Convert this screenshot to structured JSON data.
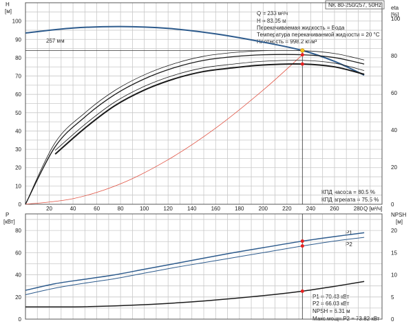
{
  "chart_data": [
    {
      "type": "line",
      "title": "NK 80-250/257, 50Hz",
      "xlabel": "Q [м³/ч]",
      "x_ticks": [
        0,
        20,
        40,
        60,
        80,
        100,
        120,
        140,
        160,
        180,
        200,
        220,
        240,
        260,
        280
      ],
      "xlim": [
        0,
        300
      ],
      "grid": true,
      "left_axis": {
        "label_top": "H",
        "label_unit": "[м]",
        "ylim": [
          0,
          110
        ],
        "ticks": [
          0,
          10,
          20,
          30,
          40,
          50,
          60,
          70,
          80,
          90,
          100
        ]
      },
      "right_axis": {
        "label_top": "eta",
        "label_unit": "[%]",
        "ylim": [
          0,
          100
        ],
        "ticks": [
          0,
          20,
          40,
          60,
          80,
          100
        ]
      },
      "series": [
        {
          "name": "257 мм",
          "axis": "left",
          "color": "#2c5a8c",
          "x": [
            0,
            40,
            80,
            120,
            160,
            200,
            233,
            260,
            285
          ],
          "y": [
            93.5,
            96.2,
            97,
            96,
            93,
            88.5,
            83.95,
            78,
            70.5
          ]
        },
        {
          "name": "",
          "axis": "right",
          "color": "#e05040",
          "x": [
            0,
            40,
            80,
            120,
            160,
            200,
            233
          ],
          "y": [
            0,
            3,
            11,
            24,
            41,
            61.5,
            80.5
          ]
        },
        {
          "name": "КПД насоса",
          "axis": "right",
          "color": "#1a1a1a",
          "x": [
            0,
            25,
            50,
            75,
            100,
            125,
            150,
            175,
            200,
            233,
            260,
            285
          ],
          "y": [
            0,
            31,
            47,
            59,
            67.5,
            73.5,
            77.5,
            79.5,
            80.5,
            80.5,
            79,
            75.5
          ]
        },
        {
          "name": "КПД агрегата",
          "axis": "right",
          "color": "#1a1a1a",
          "x": [
            25,
            50,
            75,
            100,
            125,
            150,
            175,
            200,
            233,
            260,
            285
          ],
          "y": [
            27,
            41,
            53,
            61.5,
            67.5,
            71.5,
            73.5,
            75,
            75.5,
            74,
            70
          ]
        }
      ],
      "operating_point": {
        "Q": 233,
        "H": 83.95
      },
      "info_lines": [
        "Q = 233 м³/ч",
        "H = 83.95 м",
        "Перекачиваемая жидкость = Вода",
        "Температура перекачиваемой жидкости = 20 °C",
        "Плотность = 998.2 кг/м³"
      ],
      "efficiency_lines": [
        "КПД насоса = 80.5 %",
        "КПД агрегата = 75.5 %"
      ]
    },
    {
      "type": "line",
      "left_axis": {
        "label_top": "P",
        "label_unit": "[кВт]",
        "ylim": [
          0,
          95
        ],
        "ticks": [
          0,
          20,
          40,
          60,
          80
        ]
      },
      "right_axis": {
        "label_top": "NPSH",
        "label_unit": "[м]",
        "ylim": [
          0,
          23.75
        ],
        "ticks": [
          0,
          5,
          10,
          15,
          20
        ]
      },
      "grid": true,
      "series": [
        {
          "name": "P1",
          "axis": "left",
          "color": "#2c5a8c",
          "x": [
            0,
            25,
            50,
            75,
            100,
            125,
            150,
            175,
            200,
            233,
            260,
            285
          ],
          "y": [
            26,
            32,
            36,
            40,
            45,
            50,
            55,
            60,
            64.5,
            70.43,
            74.5,
            78
          ]
        },
        {
          "name": "P2",
          "axis": "left",
          "color": "#2c5a8c",
          "x": [
            0,
            25,
            50,
            75,
            100,
            125,
            150,
            175,
            200,
            233,
            260,
            285
          ],
          "y": [
            22,
            28,
            32.5,
            36.5,
            41.5,
            46.5,
            51,
            55.5,
            60,
            66.03,
            70.5,
            73.82
          ]
        },
        {
          "name": "NPSH",
          "axis": "right",
          "color": "#1a1a1a",
          "x": [
            0,
            50,
            100,
            150,
            200,
            233,
            260,
            285
          ],
          "y": [
            2.75,
            2.8,
            3.25,
            4.1,
            5.3,
            6.31,
            7.4,
            8.5
          ]
        }
      ],
      "info_lines": [
        "P1 = 70.43 кВт",
        "P2 = 66.03 кВт",
        "NPSH = 6.31 м",
        "Макс.мощн.P2 = 73.82 кВт"
      ]
    }
  ]
}
